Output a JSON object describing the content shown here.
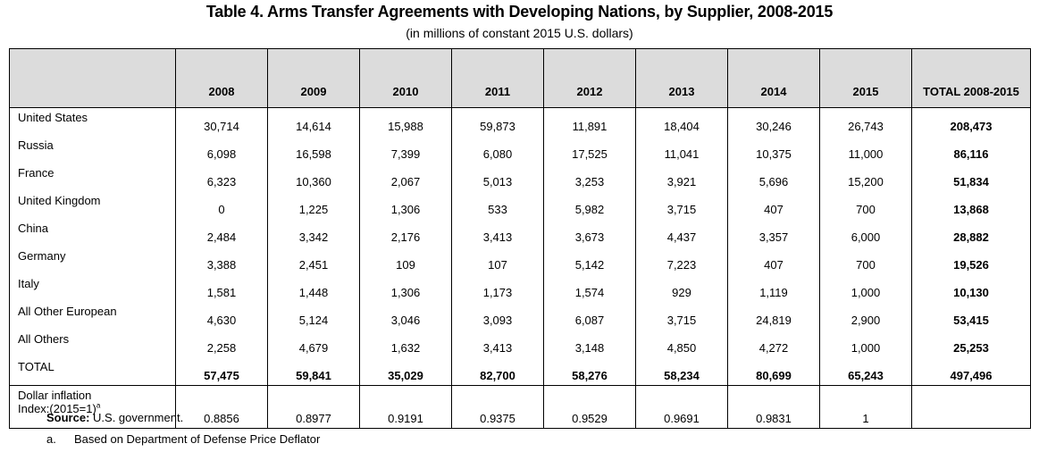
{
  "title": "Table 4. Arms Transfer Agreements with Developing Nations, by Supplier, 2008-2015",
  "subtitle": "(in millions of constant 2015 U.S. dollars)",
  "columns": [
    "2008",
    "2009",
    "2010",
    "2011",
    "2012",
    "2013",
    "2014",
    "2015",
    "TOTAL 2008-2015"
  ],
  "rows": [
    {
      "label": "United States",
      "values": [
        "30,714",
        "14,614",
        "15,988",
        "59,873",
        "11,891",
        "18,404",
        "30,246",
        "26,743"
      ],
      "total": "208,473"
    },
    {
      "label": "Russia",
      "values": [
        "6,098",
        "16,598",
        "7,399",
        "6,080",
        "17,525",
        "11,041",
        "10,375",
        "11,000"
      ],
      "total": "86,116"
    },
    {
      "label": "France",
      "values": [
        "6,323",
        "10,360",
        "2,067",
        "5,013",
        "3,253",
        "3,921",
        "5,696",
        "15,200"
      ],
      "total": "51,834"
    },
    {
      "label": "United Kingdom",
      "values": [
        "0",
        "1,225",
        "1,306",
        "533",
        "5,982",
        "3,715",
        "407",
        "700"
      ],
      "total": "13,868"
    },
    {
      "label": "China",
      "values": [
        "2,484",
        "3,342",
        "2,176",
        "3,413",
        "3,673",
        "4,437",
        "3,357",
        "6,000"
      ],
      "total": "28,882"
    },
    {
      "label": "Germany",
      "values": [
        "3,388",
        "2,451",
        "109",
        "107",
        "5,142",
        "7,223",
        "407",
        "700"
      ],
      "total": "19,526"
    },
    {
      "label": "Italy",
      "values": [
        "1,581",
        "1,448",
        "1,306",
        "1,173",
        "1,574",
        "929",
        "1,119",
        "1,000"
      ],
      "total": "10,130"
    },
    {
      "label": "All Other European",
      "values": [
        "4,630",
        "5,124",
        "3,046",
        "3,093",
        "6,087",
        "3,715",
        "24,819",
        "2,900"
      ],
      "total": "53,415"
    },
    {
      "label": "All Others",
      "values": [
        "2,258",
        "4,679",
        "1,632",
        "3,413",
        "3,148",
        "4,850",
        "4,272",
        "1,000"
      ],
      "total": "25,253"
    }
  ],
  "total_row": {
    "label": "TOTAL",
    "values": [
      "57,475",
      "59,841",
      "35,029",
      "82,700",
      "58,276",
      "58,234",
      "80,699",
      "65,243"
    ],
    "total": "497,496"
  },
  "inflation_row": {
    "label_line1": "Dollar inflation",
    "label_line2": "Index:(2015=1)",
    "footnote_mark": "a",
    "values": [
      "0.8856",
      "0.8977",
      "0.9191",
      "0.9375",
      "0.9529",
      "0.9691",
      "0.9831",
      "1"
    ],
    "total": ""
  },
  "source": {
    "label": "Source:",
    "text": "U.S. government."
  },
  "note": {
    "mark": "a.",
    "text": "Based on Department of Defense Price Deflator"
  }
}
